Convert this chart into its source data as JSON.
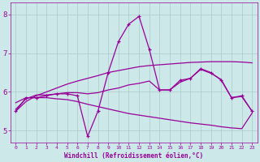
{
  "xlabel": "Windchill (Refroidissement éolien,°C)",
  "bg_color": "#cce8e8",
  "grid_color": "#aacccc",
  "line_color": "#990099",
  "xlim": [
    -0.5,
    23.5
  ],
  "ylim": [
    4.7,
    8.3
  ],
  "xticks": [
    0,
    1,
    2,
    3,
    4,
    5,
    6,
    7,
    8,
    9,
    10,
    11,
    12,
    13,
    14,
    15,
    16,
    17,
    18,
    19,
    20,
    21,
    22,
    23
  ],
  "yticks": [
    5,
    6,
    7,
    8
  ],
  "lines": [
    {
      "x": [
        0,
        1,
        2,
        3,
        4,
        5,
        6,
        7,
        8,
        9,
        10,
        11,
        12,
        13,
        14,
        15,
        16,
        17,
        18,
        19,
        20,
        21,
        22,
        23
      ],
      "y": [
        5.5,
        5.85,
        5.85,
        5.9,
        5.95,
        5.95,
        5.9,
        4.85,
        5.5,
        6.5,
        7.3,
        7.75,
        7.95,
        7.1,
        6.05,
        6.05,
        6.3,
        6.35,
        6.6,
        6.5,
        6.3,
        5.85,
        5.9,
        5.5
      ],
      "has_markers": true
    },
    {
      "x": [
        0,
        1,
        2,
        3,
        4,
        5,
        6,
        7,
        8,
        9,
        10,
        11,
        12,
        13,
        14,
        15,
        16,
        17,
        18,
        19,
        20,
        21,
        22,
        23
      ],
      "y": [
        5.5,
        5.75,
        5.9,
        6.0,
        6.1,
        6.2,
        6.28,
        6.35,
        6.42,
        6.5,
        6.55,
        6.6,
        6.65,
        6.68,
        6.7,
        6.72,
        6.74,
        6.76,
        6.77,
        6.78,
        6.78,
        6.78,
        6.77,
        6.75
      ],
      "has_markers": false
    },
    {
      "x": [
        0,
        1,
        2,
        3,
        4,
        5,
        6,
        7,
        8,
        9,
        10,
        11,
        12,
        13,
        14,
        15,
        16,
        17,
        18,
        19,
        20,
        21,
        22,
        23
      ],
      "y": [
        5.55,
        5.82,
        5.92,
        5.92,
        5.95,
        5.98,
        5.98,
        5.95,
        5.98,
        6.05,
        6.1,
        6.18,
        6.22,
        6.28,
        6.05,
        6.05,
        6.25,
        6.35,
        6.58,
        6.48,
        6.32,
        5.85,
        5.88,
        5.5
      ],
      "has_markers": false
    },
    {
      "x": [
        0,
        1,
        2,
        3,
        4,
        5,
        6,
        7,
        8,
        9,
        10,
        11,
        12,
        13,
        14,
        15,
        16,
        17,
        18,
        19,
        20,
        21,
        22,
        23
      ],
      "y": [
        5.72,
        5.85,
        5.85,
        5.85,
        5.82,
        5.8,
        5.75,
        5.68,
        5.62,
        5.56,
        5.5,
        5.44,
        5.4,
        5.36,
        5.32,
        5.28,
        5.24,
        5.2,
        5.17,
        5.14,
        5.1,
        5.07,
        5.05,
        5.45
      ],
      "has_markers": false
    }
  ]
}
